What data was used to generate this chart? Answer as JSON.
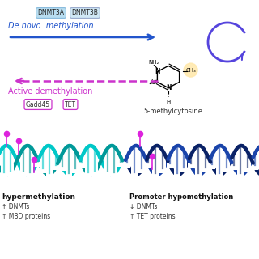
{
  "bg_color": "#ffffff",
  "blue_arrow_color": "#2255cc",
  "magenta_arrow_color": "#cc33cc",
  "purple_circle_arrow_color": "#5544dd",
  "de_novo_text": "De novo  methylation",
  "active_demeth_text": "Active demethylation",
  "dnmt3a_label": "DNMT3A",
  "dnmt3b_label": "DNMT3B",
  "gadd45_label": "Gadd45",
  "tet_label": "TET",
  "mol_label": "5-methylcytosine",
  "box_color_dnmt3a": "#b8ddf0",
  "box_color_dnmt3b": "#d0e8f5",
  "helix_cyan": "#00c8c8",
  "helix_teal": "#009999",
  "helix_blue": "#1a44aa",
  "helix_navy": "#0a2266",
  "methyl_dot_color": "#dd22dd",
  "hypermeth_text": "hypermethylation",
  "hypometh_text": "Promoter hypomethylation",
  "hypometh_sub1": "↓ DNMTs",
  "hypometh_sub2": "↑ TET proteins"
}
